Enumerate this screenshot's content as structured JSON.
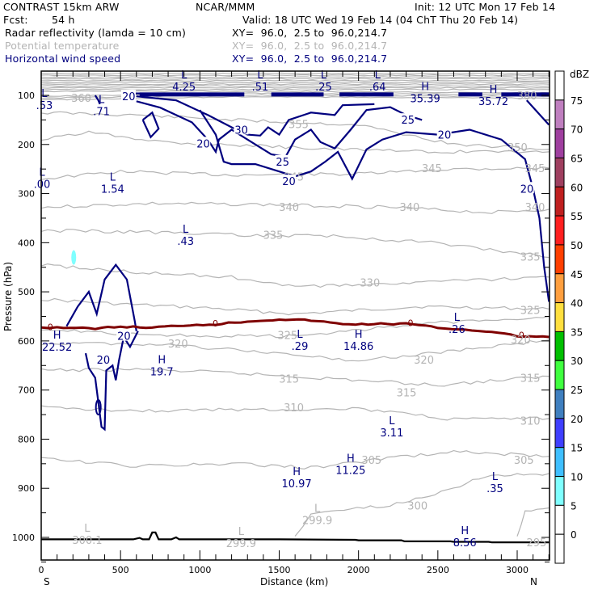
{
  "header": {
    "model": "CONTRAST 15km ARW",
    "org": "NCAR/MMM",
    "init": "Init: 12 UTC Mon 17 Feb 14",
    "fcst_label": "Fcst:",
    "fcst_value": "54 h",
    "valid": "Valid: 18 UTC Wed 19 Feb 14 (04 ChT Thu 20 Feb 14)",
    "fields": [
      {
        "name": "Radar reflectivity (lamda = 10 cm)",
        "xy": "XY=  96.0,  2.5 to  96.0,214.7",
        "color": "#000000"
      },
      {
        "name": "Potential temperature",
        "xy": "XY=  96.0,  2.5 to  96.0,214.7",
        "color": "#b4b4b4"
      },
      {
        "name": "Horizontal wind speed",
        "xy": "XY=  96.0,  2.5 to  96.0,214.7",
        "color": "#00007f"
      }
    ]
  },
  "chart_data": {
    "type": "contour",
    "title": "Radar reflectivity, Potential temperature, Horizontal wind speed cross-section",
    "xlabel": "Distance (km)",
    "ylabel": "Pressure (hPa)",
    "xlim": [
      0,
      3200
    ],
    "ylim": [
      1050,
      50
    ],
    "x_ticks": [
      0,
      500,
      1000,
      1500,
      2000,
      2500,
      3000
    ],
    "y_ticks": [
      100,
      200,
      300,
      400,
      500,
      600,
      700,
      800,
      900,
      1000
    ],
    "x_end_labels": {
      "left": "S",
      "right": "N"
    },
    "colorbar": {
      "unit": "dBZ",
      "levels": [
        0,
        5,
        10,
        15,
        20,
        25,
        30,
        35,
        40,
        45,
        50,
        55,
        60,
        65,
        70,
        75
      ],
      "colors": [
        "#ffffff",
        "#ffffff",
        "#7fffff",
        "#3fbfff",
        "#3f3fff",
        "#3f7fbf",
        "#3fff3f",
        "#00bf00",
        "#ffdf3f",
        "#ff9f3f",
        "#ff3f00",
        "#ff1f1f",
        "#bf1f1f",
        "#9f3f5f",
        "#9f3f9f",
        "#bf7fbf",
        "#ffffff"
      ]
    },
    "wind_speed_contours": [
      20,
      25,
      30
    ],
    "theta_labels": [
      {
        "value": "380",
        "x": 3060,
        "p": 100
      },
      {
        "value": "360",
        "x": 250,
        "p": 105
      },
      {
        "value": "355",
        "x": 1620,
        "p": 158
      },
      {
        "value": "350",
        "x": 3000,
        "p": 205
      },
      {
        "value": "345",
        "x": 1590,
        "p": 265
      },
      {
        "value": "345",
        "x": 2460,
        "p": 248
      },
      {
        "value": "345",
        "x": 3110,
        "p": 248
      },
      {
        "value": "340",
        "x": 1560,
        "p": 327
      },
      {
        "value": "340",
        "x": 2320,
        "p": 327
      },
      {
        "value": "340",
        "x": 3110,
        "p": 327
      },
      {
        "value": "335",
        "x": 1460,
        "p": 384
      },
      {
        "value": "335",
        "x": 3080,
        "p": 428
      },
      {
        "value": "330",
        "x": 2070,
        "p": 481
      },
      {
        "value": "325",
        "x": 3080,
        "p": 537
      },
      {
        "value": "325",
        "x": 1550,
        "p": 588
      },
      {
        "value": "320",
        "x": 860,
        "p": 605
      },
      {
        "value": "320",
        "x": 2410,
        "p": 638
      },
      {
        "value": "320",
        "x": 3020,
        "p": 597
      },
      {
        "value": "315",
        "x": 1560,
        "p": 677
      },
      {
        "value": "315",
        "x": 2300,
        "p": 705
      },
      {
        "value": "315",
        "x": 3080,
        "p": 675
      },
      {
        "value": "310",
        "x": 1590,
        "p": 735
      },
      {
        "value": "310",
        "x": 3080,
        "p": 762
      },
      {
        "value": "305",
        "x": 2080,
        "p": 842
      },
      {
        "value": "305",
        "x": 3040,
        "p": 842
      },
      {
        "value": "300",
        "x": 2370,
        "p": 935
      },
      {
        "value": "295",
        "x": 3120,
        "p": 1010
      }
    ],
    "wind_labels": [
      {
        "value": "20",
        "x": 550,
        "p": 100
      },
      {
        "value": "30",
        "x": 1260,
        "p": 168
      },
      {
        "value": "25",
        "x": 1520,
        "p": 233
      },
      {
        "value": "20",
        "x": 1020,
        "p": 196
      },
      {
        "value": "20",
        "x": 1560,
        "p": 273
      },
      {
        "value": "25",
        "x": 2310,
        "p": 148
      },
      {
        "value": "20",
        "x": 2540,
        "p": 178
      },
      {
        "value": "20",
        "x": 3060,
        "p": 288
      },
      {
        "value": "20",
        "x": 520,
        "p": 588
      },
      {
        "value": "20",
        "x": 390,
        "p": 636
      }
    ],
    "freezing_label": "0",
    "extrema": [
      {
        "type": "L",
        "value": "4.25",
        "x": 900,
        "p": 72,
        "color": "#00007f"
      },
      {
        "type": "L",
        "value": ".51",
        "x": 1380,
        "p": 72,
        "color": "#00007f"
      },
      {
        "type": "L",
        "value": ".25",
        "x": 1780,
        "p": 72,
        "color": "#00007f"
      },
      {
        "type": "L",
        "value": ".64",
        "x": 2120,
        "p": 72,
        "color": "#00007f"
      },
      {
        "type": "L",
        "value": ".71",
        "x": 380,
        "p": 122,
        "color": "#00007f"
      },
      {
        "type": "L",
        "value": ".53",
        "x": 20,
        "p": 110,
        "color": "#00007f"
      },
      {
        "type": "H",
        "value": "35.39",
        "x": 2420,
        "p": 96,
        "color": "#00007f"
      },
      {
        "type": "H",
        "value": "35.72",
        "x": 2850,
        "p": 102,
        "color": "#00007f"
      },
      {
        "type": "L",
        "value": "1.54",
        "x": 450,
        "p": 280,
        "color": "#00007f"
      },
      {
        "type": "L",
        "value": ".00",
        "x": 5,
        "p": 270,
        "color": "#00007f"
      },
      {
        "type": "L",
        "value": ".43",
        "x": 910,
        "p": 386,
        "color": "#00007f"
      },
      {
        "type": "H",
        "value": "22.52",
        "x": 100,
        "p": 602,
        "color": "#00007f"
      },
      {
        "type": "H",
        "value": "19.7",
        "x": 760,
        "p": 652,
        "color": "#00007f"
      },
      {
        "type": "L",
        "value": ".29",
        "x": 1630,
        "p": 600,
        "color": "#00007f"
      },
      {
        "type": "H",
        "value": "14.86",
        "x": 2000,
        "p": 600,
        "color": "#00007f"
      },
      {
        "type": "L",
        "value": ".26",
        "x": 2620,
        "p": 566,
        "color": "#00007f"
      },
      {
        "type": "L",
        "value": "3.11",
        "x": 2210,
        "p": 776,
        "color": "#00007f"
      },
      {
        "type": "H",
        "value": "11.25",
        "x": 1950,
        "p": 853,
        "color": "#00007f"
      },
      {
        "type": "H",
        "value": "10.97",
        "x": 1610,
        "p": 880,
        "color": "#00007f"
      },
      {
        "type": "L",
        "value": ".35",
        "x": 2860,
        "p": 890,
        "color": "#00007f"
      },
      {
        "type": "H",
        "value": "8.56",
        "x": 2670,
        "p": 1000,
        "color": "#00007f"
      },
      {
        "type": "L",
        "value": "300.1",
        "x": 290,
        "p": 995,
        "color": "#b4b4b4"
      },
      {
        "type": "L",
        "value": "299.9",
        "x": 1740,
        "p": 955,
        "color": "#b4b4b4"
      },
      {
        "type": "L",
        "value": "299.9",
        "x": 1260,
        "p": 1002,
        "color": "#b4b4b4"
      }
    ]
  }
}
